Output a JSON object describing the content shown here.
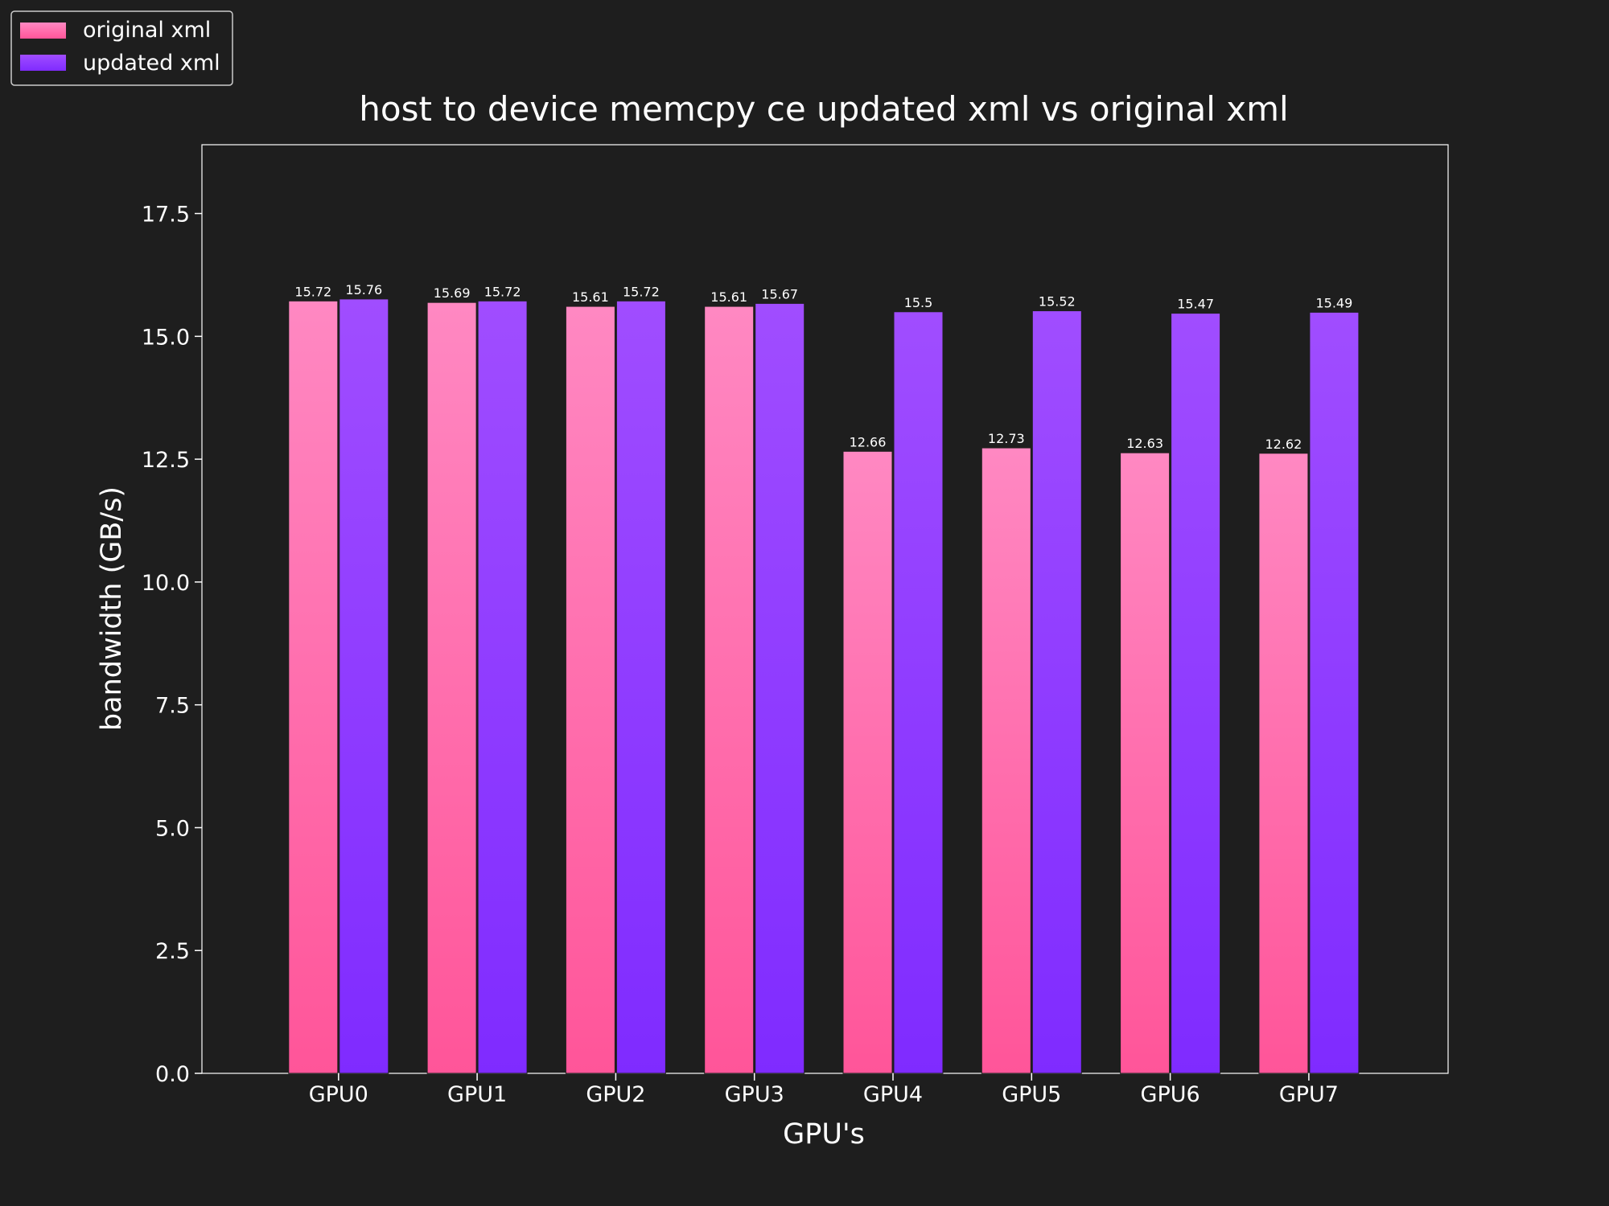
{
  "chart_data": {
    "type": "bar",
    "title": "host to device memcpy ce updated xml vs original xml",
    "xlabel": "GPU's",
    "ylabel": "bandwidth (GB/s)",
    "categories": [
      "GPU0",
      "GPU1",
      "GPU2",
      "GPU3",
      "GPU4",
      "GPU5",
      "GPU6",
      "GPU7"
    ],
    "series": [
      {
        "name": "original xml",
        "values": [
          15.72,
          15.69,
          15.61,
          15.61,
          12.66,
          12.73,
          12.63,
          12.62
        ],
        "labels": [
          "15.72",
          "15.69",
          "15.61",
          "15.61",
          "12.66",
          "12.73",
          "12.63",
          "12.62"
        ],
        "color_top": "#ff88c2",
        "color_bottom": "#ff5599"
      },
      {
        "name": "updated xml",
        "values": [
          15.76,
          15.72,
          15.72,
          15.67,
          15.5,
          15.52,
          15.47,
          15.49
        ],
        "labels": [
          "15.76",
          "15.72",
          "15.72",
          "15.67",
          "15.5",
          "15.52",
          "15.47",
          "15.49"
        ],
        "color_top": "#a04dff",
        "color_bottom": "#7f2bff"
      }
    ],
    "ylim": [
      0,
      18.9
    ],
    "yticks": [
      "0.0",
      "2.5",
      "5.0",
      "7.5",
      "10.0",
      "12.5",
      "15.0",
      "17.5"
    ],
    "grid": false,
    "legend_position": "top-left",
    "background": "#1e1e1e",
    "axes_color": "#ffffff"
  }
}
